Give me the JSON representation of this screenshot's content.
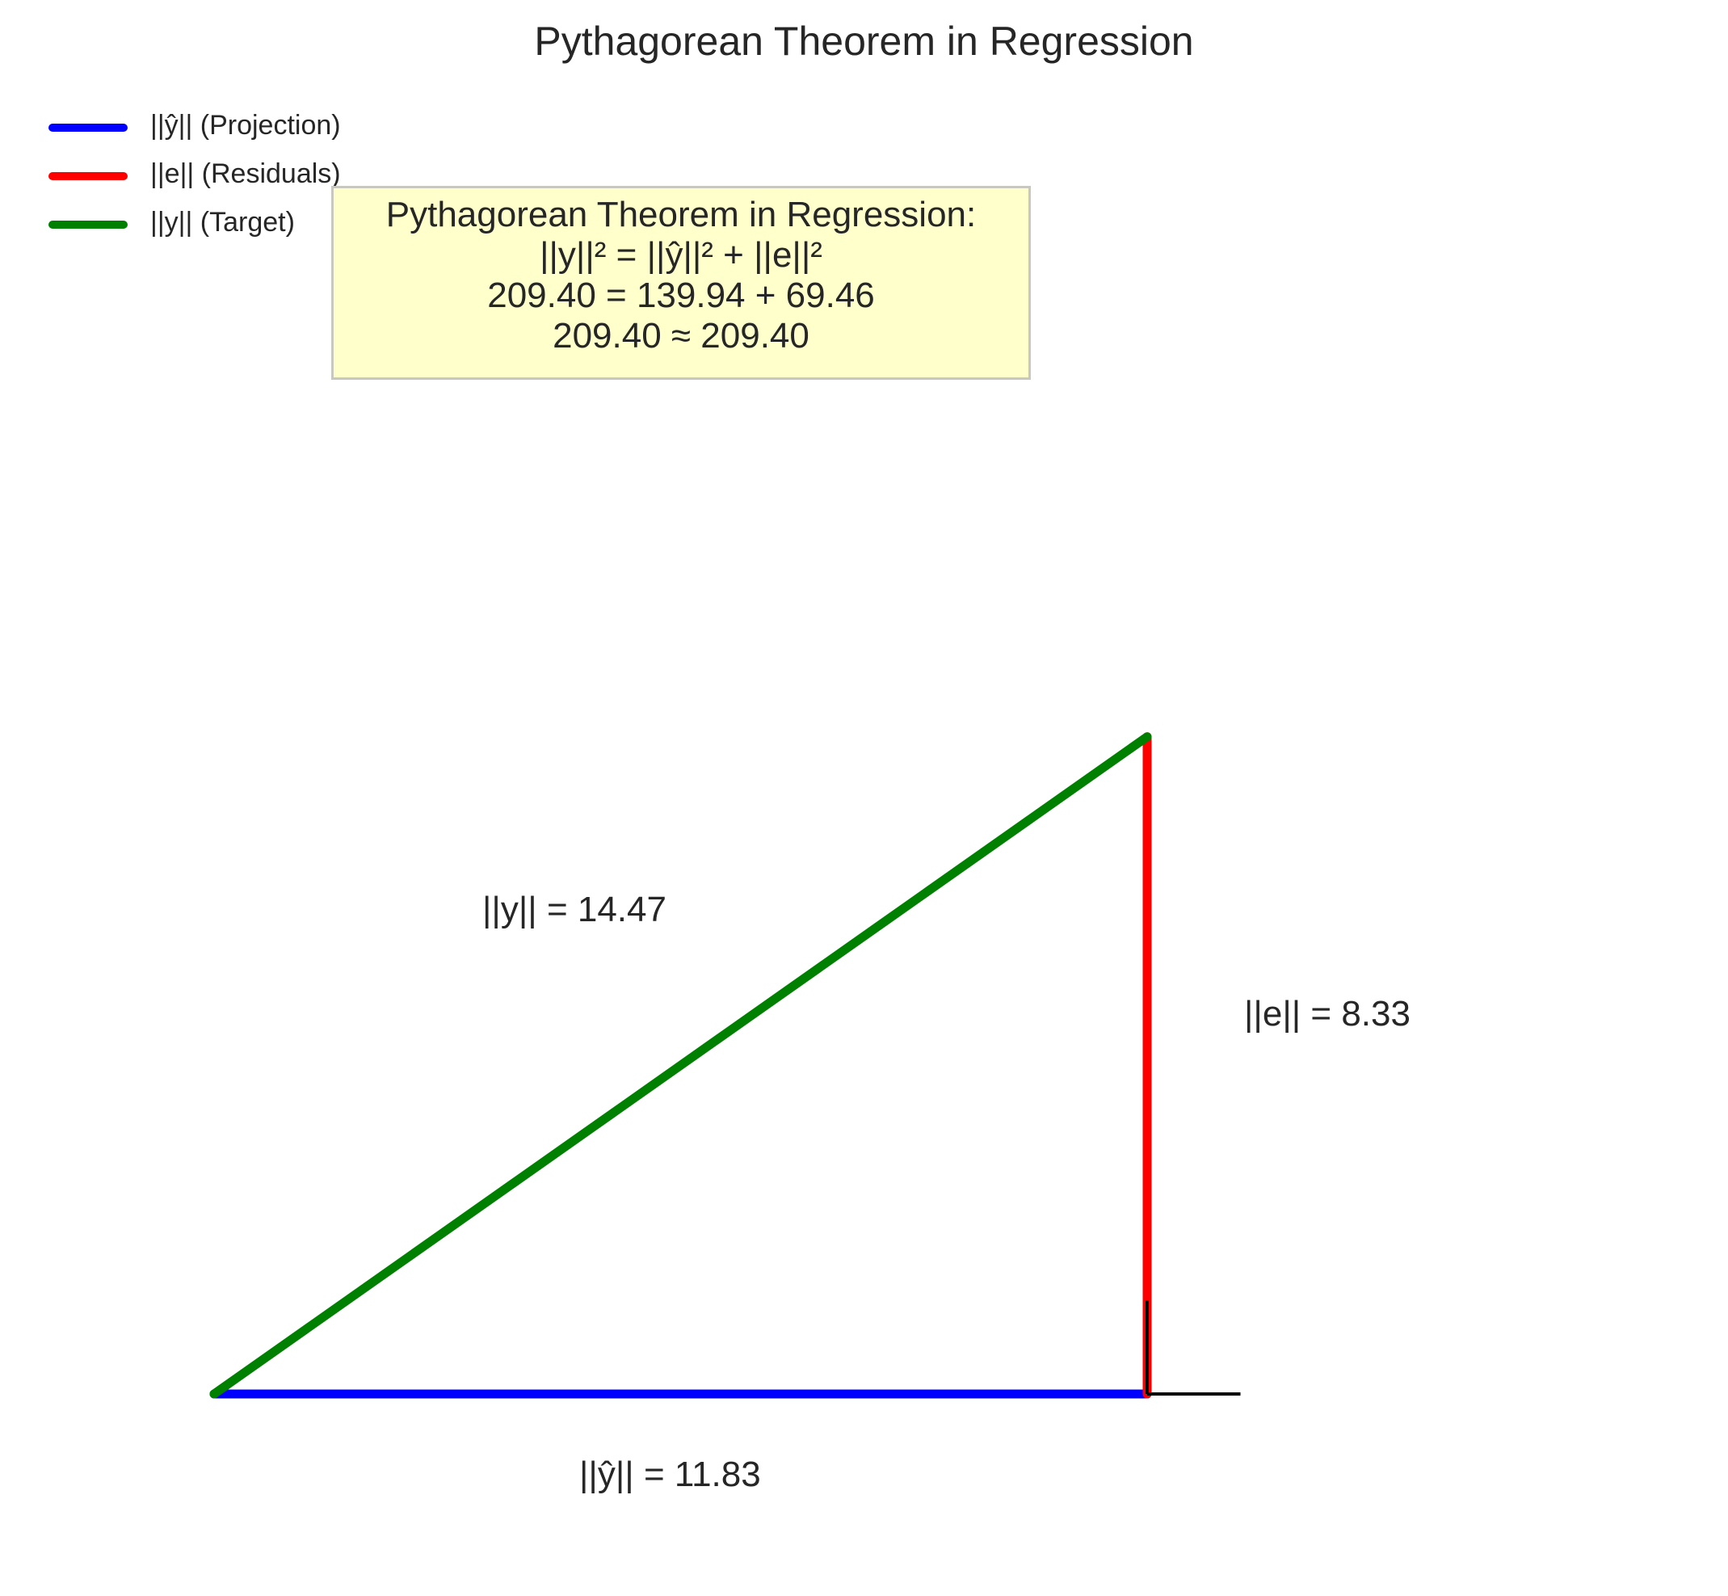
{
  "title": "Pythagorean Theorem in Regression",
  "legend": [
    {
      "label": "||ŷ|| (Projection)",
      "color": "#0000ff"
    },
    {
      "label": "||e|| (Residuals)",
      "color": "#ff0000"
    },
    {
      "label": "||y|| (Target)",
      "color": "#008000"
    }
  ],
  "equation_box": {
    "line1": "Pythagorean Theorem in Regression:",
    "line2": "||y||² = ||ŷ||² + ||e||²",
    "line3": "209.40 = 139.94 + 69.46",
    "line4": "209.40 ≈ 209.40"
  },
  "triangle": {
    "projection_norm": 11.83,
    "residual_norm": 8.33,
    "target_norm": 14.47,
    "projection_label": "||ŷ|| = 11.83",
    "residual_label": "||e|| = 8.33",
    "target_label": "||y|| = 14.47"
  }
}
